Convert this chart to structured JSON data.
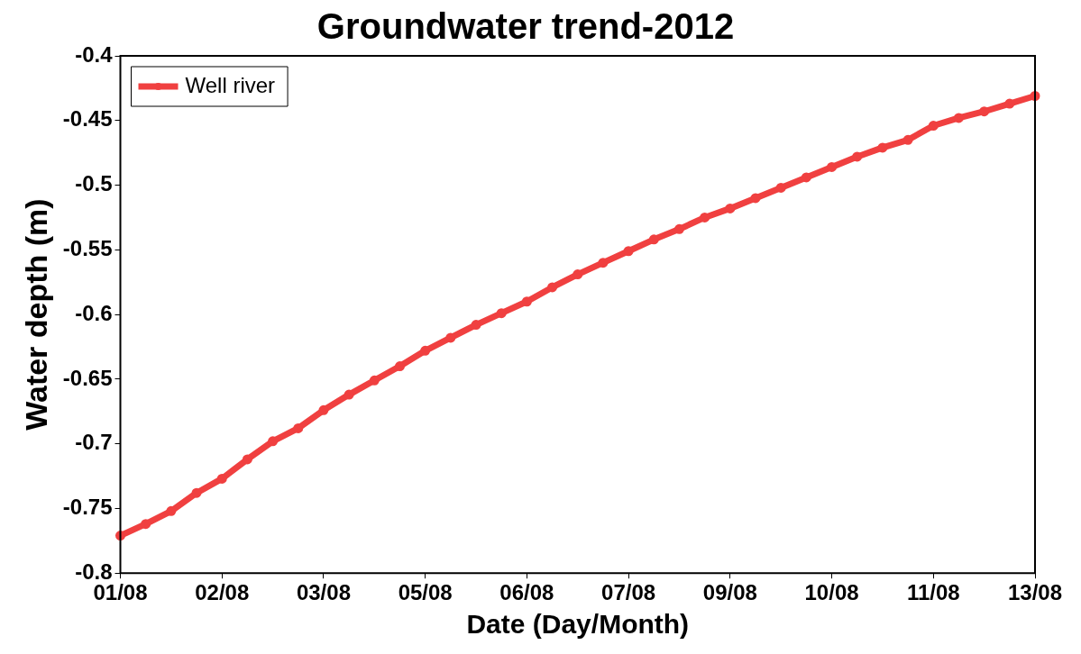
{
  "chart_data": {
    "type": "line",
    "title": "Groundwater trend-2012",
    "xlabel": "Date (Day/Month)",
    "ylabel": "Water depth (m)",
    "categories": [
      "01/08",
      null,
      null,
      null,
      "02/08",
      null,
      null,
      null,
      "03/08",
      null,
      null,
      null,
      "05/08",
      null,
      null,
      null,
      "06/08",
      null,
      null,
      null,
      "07/08",
      null,
      null,
      null,
      "09/08",
      null,
      null,
      null,
      "10/08",
      null,
      null,
      null,
      "11/08",
      null,
      null,
      null,
      "13/08"
    ],
    "ylim": [
      -0.8,
      -0.4
    ],
    "yticks": [
      -0.8,
      -0.75,
      -0.7,
      -0.65,
      -0.6,
      -0.55,
      -0.5,
      -0.45,
      -0.4
    ],
    "series": [
      {
        "name": "Well river",
        "color": "#f04040",
        "values": [
          -0.771,
          -0.762,
          -0.752,
          -0.738,
          -0.727,
          -0.712,
          -0.698,
          -0.688,
          -0.674,
          -0.662,
          -0.651,
          -0.64,
          -0.628,
          -0.618,
          -0.608,
          -0.599,
          -0.59,
          -0.579,
          -0.569,
          -0.56,
          -0.551,
          -0.542,
          -0.534,
          -0.525,
          -0.518,
          -0.51,
          -0.502,
          -0.494,
          -0.486,
          -0.478,
          -0.471,
          -0.465,
          -0.454,
          -0.448,
          -0.443,
          -0.437,
          -0.431
        ]
      }
    ],
    "legend": "top left",
    "marker": "circle",
    "line_style": "solid",
    "grid": false
  }
}
